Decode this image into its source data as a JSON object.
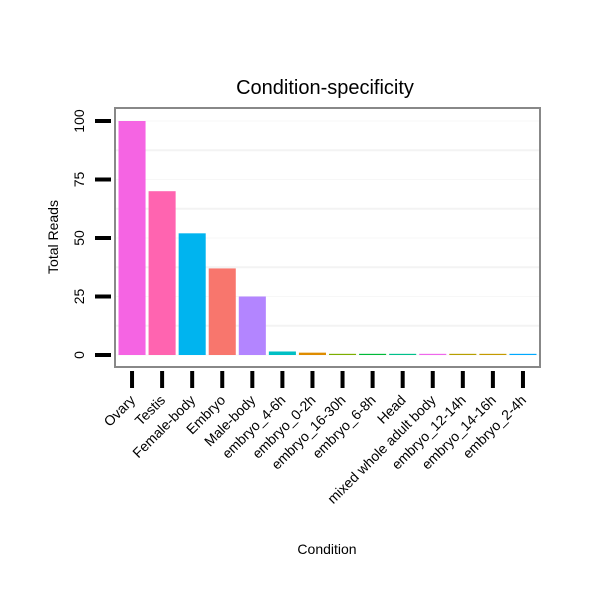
{
  "chart_data": {
    "type": "bar",
    "title": "Condition-specificity",
    "xlabel": "Condition",
    "ylabel": "Total Reads",
    "ylim": [
      0,
      105
    ],
    "yticks": [
      0,
      25,
      50,
      75,
      100
    ],
    "grid": true,
    "legend": "none",
    "categories": [
      "Ovary",
      "Testis",
      "Female-body",
      "Embryo",
      "Male-body",
      "embryo_4-6h",
      "embryo_0-2h",
      "embryo_16-30h",
      "embryo_6-8h",
      "Head",
      "mixed whole adult body",
      "embryo_12-14h",
      "embryo_14-16h",
      "embryo_2-4h"
    ],
    "values": [
      100,
      70,
      52,
      37,
      25,
      1.5,
      1,
      0.5,
      0.5,
      0.5,
      0.5,
      0.5,
      0.5,
      0.5
    ],
    "colors": [
      "#F564E3",
      "#FF64B0",
      "#00B4EF",
      "#F8766D",
      "#B385FF",
      "#00BFC4",
      "#DE8C00",
      "#7CAE00",
      "#00BA38",
      "#00C08B",
      "#EF67EB",
      "#B79F00",
      "#C49A00",
      "#00A9FF"
    ]
  }
}
